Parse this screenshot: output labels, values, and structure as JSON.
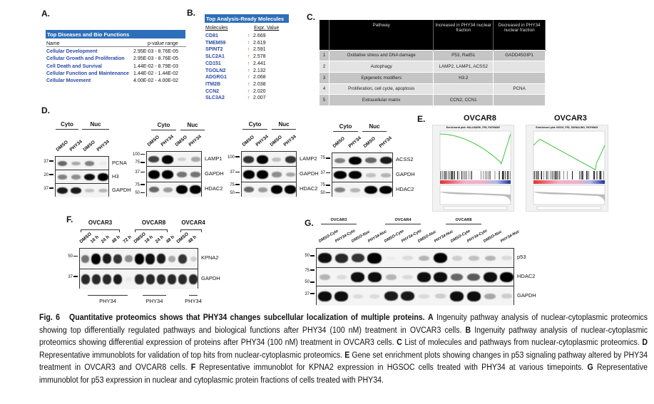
{
  "panel_labels": {
    "A": "A.",
    "B": "B.",
    "C": "C.",
    "D": "D.",
    "E": "E.",
    "F": "F.",
    "G": "G."
  },
  "panelA": {
    "title": "Top Diseases and Bio Functions",
    "col_name": "Name",
    "col_p": "p-value range",
    "rows": [
      {
        "name": "Cellular Development",
        "p": "2.95E-03 - 8.76E-05"
      },
      {
        "name": "Cellular Growth and Proliferation",
        "p": "2.95E-03 - 8.76E-05"
      },
      {
        "name": "Cell Death and Survival",
        "p": "1.44E-02 - 8.79E-03"
      },
      {
        "name": "Cellular Function and Maintenance",
        "p": "1.44E-02 - 1.44E-02"
      },
      {
        "name": "Cellular Movement",
        "p": "4.00E-02 - 4.00E-02"
      }
    ]
  },
  "panelB": {
    "title": "Top Analysis-Ready Molecules",
    "col_mol": "Molecules",
    "col_val": "Expr. Value",
    "arrow": "↑",
    "rows": [
      {
        "mol": "CD81",
        "val": "2.669"
      },
      {
        "mol": "TMEM59",
        "val": "2.619"
      },
      {
        "mol": "SPINT2",
        "val": "2.591"
      },
      {
        "mol": "SLC2A1",
        "val": "2.578"
      },
      {
        "mol": "CD151",
        "val": "2.441"
      },
      {
        "mol": "TGOLN2",
        "val": "2.132"
      },
      {
        "mol": "ADGRG1",
        "val": "2.068"
      },
      {
        "mol": "ITM2B",
        "val": "2.038"
      },
      {
        "mol": "CCN2",
        "val": "2.020"
      },
      {
        "mol": "SLC3A2",
        "val": "2.007"
      }
    ]
  },
  "panelC": {
    "headers": [
      "",
      "Pathway",
      "Increased in PHY34 nuclear fraction",
      "Decreased in PHY34 nuclear fraction"
    ],
    "rows": [
      [
        "1",
        "Oxidative stress and DNA damage",
        "P53, Rad51",
        "GADD45GIP1"
      ],
      [
        "2",
        "Autophagy",
        "LAMP2, LAMP1, ACSS2",
        ""
      ],
      [
        "3",
        "Epigenetic modifiers",
        "H3.2",
        ""
      ],
      [
        "4",
        "Proliferation, cell cycle, apoptosis",
        "",
        "PCNA"
      ],
      [
        "5",
        "Extracellular matrix",
        "CCN2, CCN1",
        ""
      ]
    ]
  },
  "groups": {
    "cyto": "Cyto",
    "nuc": "Nuc",
    "ovcar3": "OVCAR3",
    "ovcar8": "OVCAR8",
    "ovcar4": "OVCAR4",
    "phy34": "PHY34"
  },
  "blots": {
    "d1": {
      "lanes": [
        "DMSO",
        "PHY34",
        "DMSO",
        "PHY34"
      ],
      "rows": [
        {
          "label": "PCNA",
          "marker": "37",
          "bands": [
            0.55,
            0.3,
            0.45,
            0.04
          ]
        },
        {
          "label": "H3",
          "marker": "20",
          "bands": [
            0.45,
            0.4,
            0.9,
            0.97
          ]
        },
        {
          "label": "GAPDH",
          "marker": "37",
          "bands": [
            0.85,
            0.85,
            0.2,
            0.25
          ]
        }
      ]
    },
    "d2": {
      "lanes": [
        "DMSO",
        "PHY34",
        "DMSO",
        "PHY34"
      ],
      "rows": [
        {
          "label": "LAMP1",
          "markers": [
            "100",
            "75"
          ],
          "bands": [
            0.7,
            1,
            0.15,
            0.3
          ]
        },
        {
          "label": "GAPDH",
          "marker": "37",
          "bands": [
            1,
            1,
            0.5,
            0.5
          ]
        },
        {
          "label": "HDAC2",
          "markers": [
            "75",
            "50"
          ],
          "bands": [
            0.55,
            0.35,
            1,
            1
          ]
        }
      ]
    },
    "d3": {
      "lanes": [
        "DMSO",
        "PHY34",
        "DMSO",
        "PHY34"
      ],
      "rows": [
        {
          "label": "LAMP2",
          "marker": "100",
          "bands": [
            0.75,
            1,
            0.2,
            0.75
          ]
        },
        {
          "label": "GAPDH",
          "marker": "37",
          "bands": [
            1,
            1,
            0.4,
            0.3
          ]
        },
        {
          "label": "HDAC2",
          "markers": [
            "75",
            "50"
          ],
          "bands": [
            0.55,
            0.35,
            1,
            1
          ]
        }
      ]
    },
    "d4": {
      "lanes": [
        "DMSO",
        "PHY34",
        "DMSO",
        "PHY34"
      ],
      "rows": [
        {
          "label": "ACSS2",
          "marker": "75",
          "bands": [
            0.45,
            0.95,
            0.55,
            0.85
          ]
        },
        {
          "label": "GAPDH",
          "marker": "37",
          "bands": [
            0.95,
            0.95,
            0.2,
            0.25
          ]
        },
        {
          "label": "HDAC2",
          "markers": [
            "75",
            "50"
          ],
          "bands": [
            0.45,
            0.25,
            1,
            1
          ]
        }
      ]
    },
    "f": {
      "lanes": [
        "DMSO",
        "16 h",
        "24 h",
        "48 h",
        "72 h",
        "DMSO",
        "16 h",
        "24 h",
        "48 h",
        "DMSO",
        "48 h"
      ],
      "rows": [
        {
          "label": "KPNA2",
          "marker": "50",
          "bands": [
            0.5,
            0.95,
            0.85,
            0.75,
            0.4,
            0.95,
            0.9,
            0.85,
            0.3,
            0.75,
            0.15
          ]
        },
        {
          "label": "GAPDH",
          "marker": "37",
          "bands": [
            0.8,
            0.8,
            0.8,
            0.85,
            0.05,
            0.8,
            0.8,
            0.8,
            0.8,
            0.8,
            0.8
          ]
        }
      ]
    },
    "g": {
      "lanes": [
        "DMSO-Cyto",
        "PHY34-Cyto",
        "DMSO-Nuc",
        "PHY34-Nuc",
        "DMSO-Cyto",
        "PHY34-Cyto",
        "DMSO-Nuc",
        "PHY34-Nuc",
        "DMSO-Cyto",
        "PHY34-Cyto",
        "DMSO-Nuc",
        "PHY34-Nuc"
      ],
      "rows": [
        {
          "label": "p53",
          "marker": "50",
          "bands": [
            0.9,
            0.8,
            0.75,
            1,
            0.03,
            0.1,
            0.25,
            0.95,
            0.15,
            0.2,
            0.25,
            0.1
          ]
        },
        {
          "label": "HDAC2",
          "markers": [
            "75",
            "50"
          ],
          "bands": [
            0.25,
            0.1,
            0.9,
            0.9,
            0.25,
            0.1,
            0.9,
            0.9,
            0.55,
            0.6,
            0.9,
            0.95
          ]
        },
        {
          "label": "GAPDH",
          "marker": "37",
          "bands": [
            0.9,
            0.9,
            0.1,
            0.1,
            0.85,
            0.85,
            0.1,
            0.15,
            0.9,
            0.9,
            0.3,
            0.15
          ]
        }
      ]
    }
  },
  "panelE": {
    "left": {
      "cell": "OVCAR8",
      "title": "Enrichment plot: HALLMARK_P53_PATHWAY"
    },
    "right": {
      "cell": "OVCAR3",
      "title": "Enrichment plot: KEGG_P53_SIGNALING_PATHWAY"
    },
    "curve_color": "#3cc43c"
  },
  "caption": {
    "fig": "Fig. 6",
    "title": "Quantitative proteomics shows that PHY34 changes subcellular localization of multiple proteins.",
    "parts": [
      {
        "k": "A",
        "t": "Ingenuity pathway analysis of nuclear-cytoplasmic proteomics showing top differentially regulated pathways and biological functions after PHY34 (100 nM) treatment in OVCAR3 cells."
      },
      {
        "k": "B",
        "t": "Ingenuity pathway analysis of nuclear-cytoplasmic proteomics showing differential expression of proteins after PHY34 (100 nM) treatment in OVCAR3 cells."
      },
      {
        "k": "C",
        "t": "List of molecules and pathways from nuclear-cytoplasmic proteomics."
      },
      {
        "k": "D",
        "t": "Representative immunoblots for validation of top hits from nuclear-cytoplasmic proteomics."
      },
      {
        "k": "E",
        "t": "Gene set enrichment plots showing changes in p53 signaling pathway altered by PHY34 treatment in OVCAR3 and OVCAR8 cells."
      },
      {
        "k": "F",
        "t": "Representative immunoblot for KPNA2 expression in HGSOC cells treated with PHY34 at various timepoints."
      },
      {
        "k": "G",
        "t": "Representative immunoblot for p53 expression in nuclear and cytoplasmic protein fractions of cells treated with PHY34."
      }
    ]
  }
}
